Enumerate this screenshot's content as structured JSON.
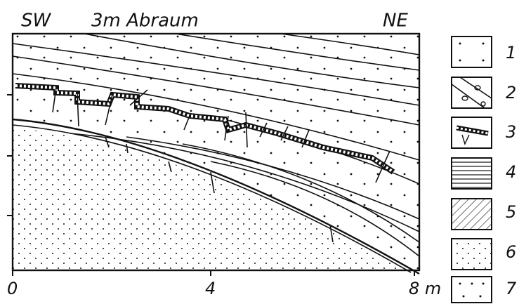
{
  "header": {
    "left": "SW",
    "center": "3m Abraum",
    "right": "NE"
  },
  "axis": {
    "ticks": [
      "0",
      "4",
      "8 m"
    ]
  },
  "legend": {
    "items": [
      {
        "label": "1"
      },
      {
        "label": "2"
      },
      {
        "label": "3"
      },
      {
        "label": "4"
      },
      {
        "label": "5"
      },
      {
        "label": "6"
      },
      {
        "label": "7"
      }
    ]
  }
}
